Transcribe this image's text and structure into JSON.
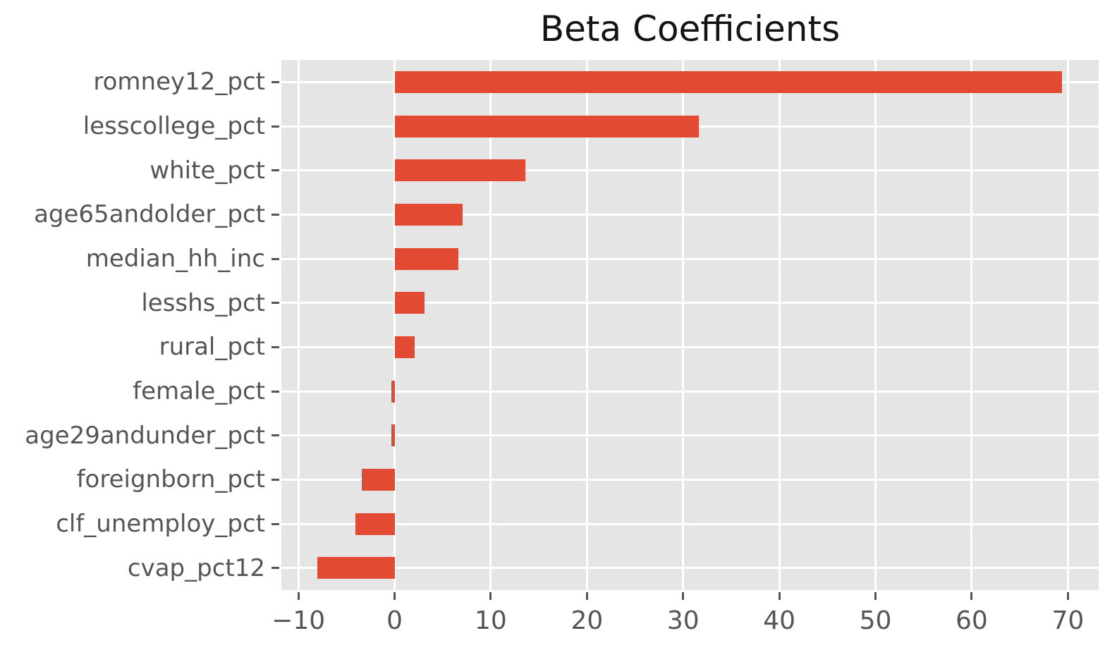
{
  "title": "Beta Coefficients",
  "colors": {
    "bar": "#E24A33",
    "plot_background": "#E5E5E5",
    "gridline": "#FFFFFF",
    "tick_label": "#555555",
    "tick_mark": "#555555",
    "title_text": "#141414",
    "figure_background": "#FFFFFF"
  },
  "chart_data": {
    "type": "bar",
    "orientation": "horizontal",
    "title": "Beta Coefficients",
    "xlabel": "",
    "ylabel": "",
    "categories": [
      "romney12_pct",
      "lesscollege_pct",
      "white_pct",
      "age65andolder_pct",
      "median_hh_inc",
      "lesshs_pct",
      "rural_pct",
      "female_pct",
      "age29andunder_pct",
      "foreignborn_pct",
      "clf_unemploy_pct",
      "cvap_pct12"
    ],
    "values": [
      69.4,
      31.6,
      13.6,
      7.1,
      6.6,
      3.1,
      2.1,
      -0.3,
      -0.3,
      -3.4,
      -4.1,
      -8.0
    ],
    "x_tick_values": [
      -10,
      0,
      10,
      20,
      30,
      40,
      50,
      60,
      70
    ],
    "x_tick_labels": [
      "−10",
      "0",
      "10",
      "20",
      "30",
      "40",
      "50",
      "60",
      "70"
    ],
    "xlim": [
      -11.77,
      73.2
    ],
    "bar_baseline": 0,
    "bar_relative_height": 0.5,
    "grid": true,
    "legend": false,
    "style": "ggplot-gray-background-white-grid"
  }
}
